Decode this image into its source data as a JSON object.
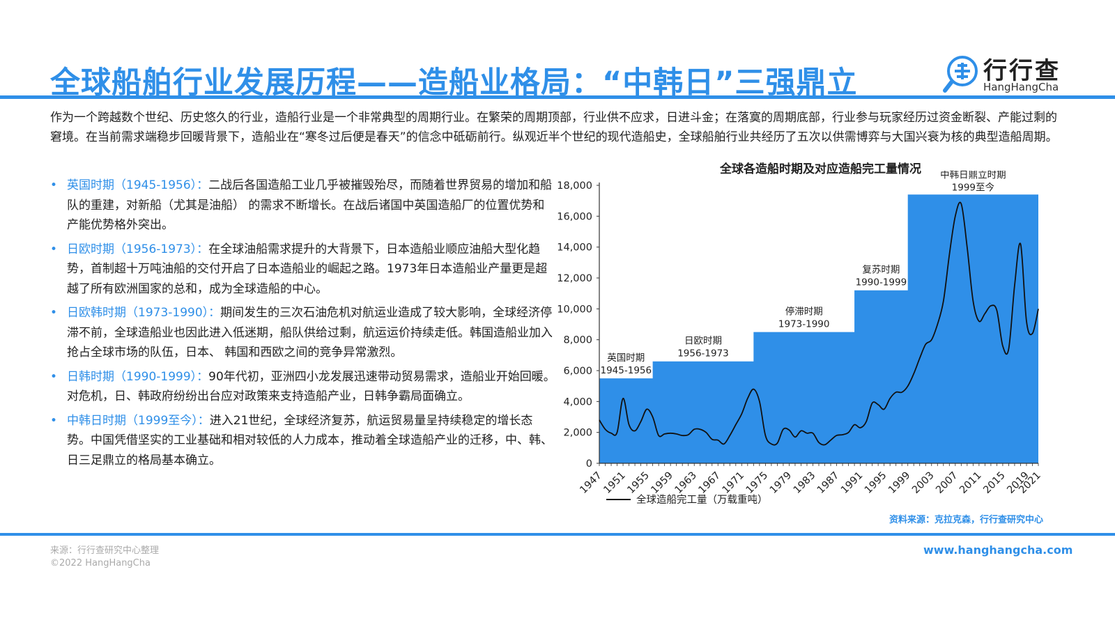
{
  "header": {
    "title": "全球船舶行业发展历程——造船业格局：“中韩日”三强鼎立",
    "logo_name": "行行查",
    "logo_sub": "HangHangCha"
  },
  "intro": "作为一个跨越数个世纪、历史悠久的行业，造船行业是一个非常典型的周期行业。在繁荣的周期顶部，行业供不应求，日进斗金；在落寞的周期底部，行业参与玩家经历过资金断裂、产能过剩的窘境。在当前需求端稳步回暖背景下，造船业在“寒冬过后便是春天”的信念中砥砺前行。纵观近半个世纪的现代造船史，全球船舶行业共经历了五次以供需博弈与大国兴衰为核的典型造船周期。",
  "bullets": [
    {
      "heading": "英国时期（1945-1956）：",
      "text": "二战后各国造船工业几乎被摧毁殆尽，而随着世界贸易的增加和船队的重建，对新船（尤其是油船） 的需求不断增长。在战后诸国中英国造船厂的位置优势和产能优势格外突出。"
    },
    {
      "heading": "日欧时期（1956-1973）：",
      "text": "在全球油船需求提升的大背景下，日本造船业顺应油船大型化趋势，首制超十万吨油船的交付开启了日本造船业的崛起之路。1973年日本造船业产量更是超越了所有欧洲国家的总和，成为全球造船的中心。"
    },
    {
      "heading": "日欧韩时期（1973-1990）：",
      "text": "期间发生的三次石油危机对航运业造成了较大影响，全球经济停滞不前，全球造船业也因此进入低迷期，船队供给过剩，航运运价持续走低。韩国造船业加入抢占全球市场的队伍，日本、 韩国和西欧之间的竞争异常激烈。"
    },
    {
      "heading": "日韩时期（1990-1999）：",
      "text": "90年代初，亚洲四小龙发展迅速带动贸易需求，造船业开始回暖。对危机，日、韩政府纷纷出台应对政策来支持造船产业，日韩争霸局面确立。"
    },
    {
      "heading": "中韩日时期（1999至今）：",
      "text": "进入21世纪，全球经济复苏，航运贸易量呈持续稳定的增长态势。中国凭借坚实的工业基础和相对较低的人力成本，推动着全球造船产业的迁移，中、韩、日三足鼎立的格局基本确立。"
    }
  ],
  "chart_data": {
    "type": "line",
    "title": "全球各造船时期及对应造船完工量情况",
    "ylim": [
      0,
      18000
    ],
    "xlim": [
      1947,
      2021
    ],
    "y_ticks": [
      0,
      2000,
      4000,
      6000,
      8000,
      10000,
      12000,
      14000,
      16000,
      18000
    ],
    "y_tick_labels": [
      "0",
      "2,000",
      "4,000",
      "6,000",
      "8,000",
      "10,000",
      "12,000",
      "14,000",
      "16,000",
      "18,000"
    ],
    "x_ticks": [
      1947,
      1951,
      1955,
      1959,
      1963,
      1967,
      1971,
      1975,
      1979,
      1983,
      1987,
      1991,
      1995,
      1999,
      2003,
      2007,
      2011,
      2015,
      2019,
      2021
    ],
    "series": [
      {
        "name": "全球造船完工量（万载重吨）",
        "x": [
          1947,
          1948,
          1949,
          1950,
          1951,
          1952,
          1953,
          1954,
          1955,
          1956,
          1957,
          1958,
          1959,
          1960,
          1961,
          1962,
          1963,
          1964,
          1965,
          1966,
          1967,
          1968,
          1969,
          1970,
          1971,
          1972,
          1973,
          1974,
          1975,
          1976,
          1977,
          1978,
          1979,
          1980,
          1981,
          1982,
          1983,
          1984,
          1985,
          1986,
          1987,
          1988,
          1989,
          1990,
          1991,
          1992,
          1993,
          1994,
          1995,
          1996,
          1997,
          1998,
          1999,
          2000,
          2001,
          2002,
          2003,
          2004,
          2005,
          2006,
          2007,
          2008,
          2009,
          2010,
          2011,
          2012,
          2013,
          2014,
          2015,
          2016,
          2017,
          2018,
          2019,
          2020,
          2021
        ],
        "values": [
          2800,
          2200,
          1950,
          2000,
          4200,
          2500,
          2100,
          2700,
          3500,
          3000,
          1800,
          1900,
          1950,
          1900,
          1800,
          1850,
          2200,
          2200,
          2000,
          1550,
          1500,
          1250,
          1800,
          2500,
          3200,
          4200,
          4800,
          4000,
          1800,
          1250,
          1300,
          2200,
          2150,
          1700,
          2100,
          1950,
          1950,
          1350,
          1200,
          1500,
          1800,
          1850,
          2000,
          2500,
          2300,
          2700,
          3900,
          3800,
          3500,
          4200,
          4600,
          4600,
          5000,
          5800,
          6800,
          7700,
          8000,
          9000,
          10500,
          13500,
          16000,
          16800,
          14000,
          10500,
          9200,
          9700,
          10200,
          9900,
          7600,
          7400,
          11500,
          14200,
          9200,
          8400,
          10000
        ]
      }
    ],
    "periods": [
      {
        "name": "英国时期",
        "range": "1945-1956",
        "start": 1947,
        "end": 1956,
        "value": 5500
      },
      {
        "name": "日欧时期",
        "range": "1956-1973",
        "start": 1956,
        "end": 1973,
        "value": 6600
      },
      {
        "name": "停滞时期",
        "range": "1973-1990",
        "start": 1973,
        "end": 1990,
        "value": 8500
      },
      {
        "name": "复苏时期",
        "range": "1990-1999",
        "start": 1990,
        "end": 1999,
        "value": 11200
      },
      {
        "name": "中韩日鼎立时期",
        "range": "1999至今",
        "start": 1999,
        "end": 2021,
        "value": 17400
      }
    ],
    "legend": "bottom-left",
    "grid": false,
    "colors": {
      "periods_fill": "#2f8fe8",
      "line": "#111111"
    }
  },
  "source_right": "资料来源：克拉克森，行行查研究中心",
  "footer": {
    "source": "来源：行行查研究中心整理",
    "copyright": "©2022 HangHangCha",
    "site": "www.hanghangcha.com"
  }
}
